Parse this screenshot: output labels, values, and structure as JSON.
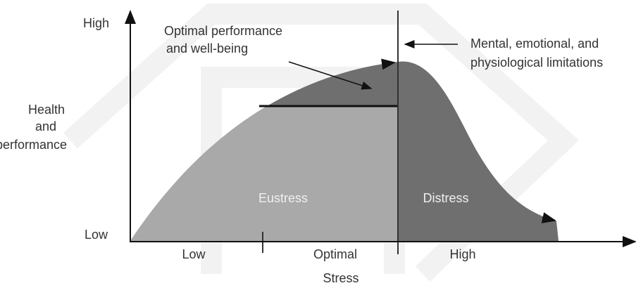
{
  "y_axis": {
    "high": "High",
    "low": "Low",
    "label": [
      "Health",
      "and",
      "performance"
    ]
  },
  "x_axis": {
    "labels": [
      "Low",
      "Optimal",
      "High"
    ],
    "title": "Stress"
  },
  "annotations": {
    "optimal": [
      "Optimal performance",
      "and well-being"
    ],
    "limitations": [
      "Mental, emotional, and",
      "physiological limitations"
    ]
  },
  "regions": {
    "eustress": "Eustress",
    "distress": "Distress"
  }
}
